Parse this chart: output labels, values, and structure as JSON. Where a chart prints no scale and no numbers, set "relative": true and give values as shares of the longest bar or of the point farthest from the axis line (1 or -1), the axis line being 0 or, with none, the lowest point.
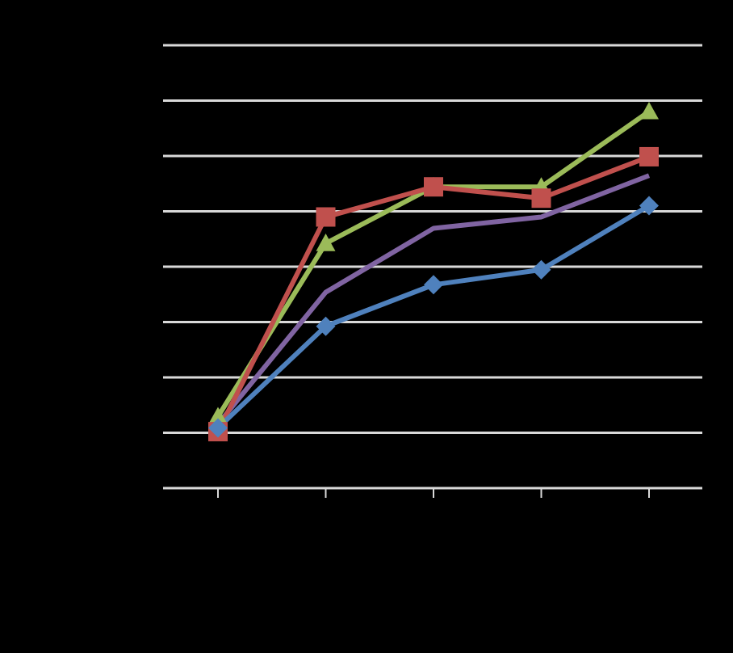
{
  "chart_data": {
    "type": "line",
    "relative": true,
    "grid": "y",
    "legend": false,
    "categories": [
      null,
      null,
      null,
      null,
      null
    ],
    "series": [
      {
        "color": "#4f81bd",
        "marker": "diamond",
        "values": [
          0.16,
          0.43,
          0.54,
          0.58,
          0.75
        ]
      },
      {
        "color": "#c0504d",
        "marker": "square",
        "values": [
          0.15,
          0.72,
          0.8,
          0.77,
          0.88
        ]
      },
      {
        "color": "#9bbb59",
        "marker": "triangle",
        "values": [
          0.19,
          0.65,
          0.8,
          0.8,
          1
        ]
      },
      {
        "color": "#8064a2",
        "marker": "none",
        "values": [
          0.17,
          0.52,
          0.69,
          0.72,
          0.83
        ]
      }
    ]
  }
}
